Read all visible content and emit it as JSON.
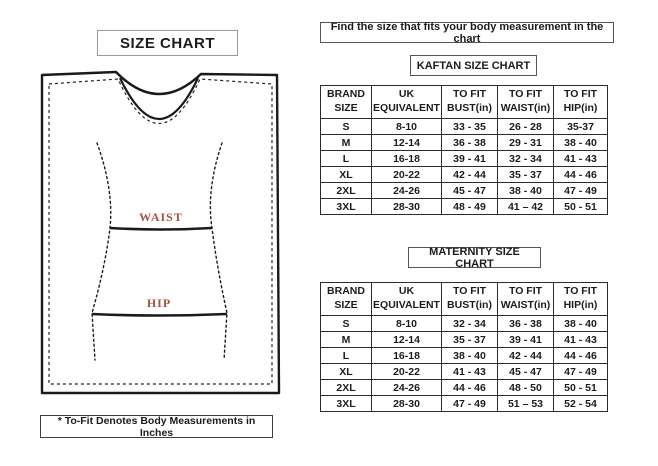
{
  "left": {
    "title": "SIZE CHART",
    "note": "* To-Fit Denotes Body Measurements in Inches",
    "diagram": {
      "waist_label": "WAIST",
      "hip_label": "HIP",
      "label_color": "#a9503f",
      "line_color": "#1a1a1a"
    }
  },
  "right": {
    "instruction": "Find the size that fits your body measurement in the chart",
    "tables": [
      {
        "title": "KAFTAN SIZE CHART",
        "columns": [
          {
            "l1": "BRAND",
            "l2": "SIZE"
          },
          {
            "l1": "UK",
            "l2": "EQUIVALENT"
          },
          {
            "l1": "TO FIT",
            "l2": "BUST(in)"
          },
          {
            "l1": "TO FIT",
            "l2": "WAIST(in)"
          },
          {
            "l1": "TO FIT",
            "l2": "HIP(in)"
          }
        ],
        "rows": [
          [
            "S",
            "8-10",
            "33 - 35",
            "26 - 28",
            "35-37"
          ],
          [
            "M",
            "12-14",
            "36 - 38",
            "29 - 31",
            "38 - 40"
          ],
          [
            "L",
            "16-18",
            "39 - 41",
            "32 - 34",
            "41 - 43"
          ],
          [
            "XL",
            "20-22",
            "42 - 44",
            "35 - 37",
            "44 - 46"
          ],
          [
            "2XL",
            "24-26",
            "45 - 47",
            "38 - 40",
            "47 - 49"
          ],
          [
            "3XL",
            "28-30",
            "48 - 49",
            "41 – 42",
            "50 - 51"
          ]
        ]
      },
      {
        "title": "MATERNITY SIZE CHART",
        "columns": [
          {
            "l1": "BRAND",
            "l2": "SIZE"
          },
          {
            "l1": "UK",
            "l2": "EQUIVALENT"
          },
          {
            "l1": "TO FIT",
            "l2": "BUST(in)"
          },
          {
            "l1": "TO FIT",
            "l2": "WAIST(in)"
          },
          {
            "l1": "TO FIT",
            "l2": "HIP(in)"
          }
        ],
        "rows": [
          [
            "S",
            "8-10",
            "32 - 34",
            "36 - 38",
            "38 - 40"
          ],
          [
            "M",
            "12-14",
            "35 - 37",
            "39 - 41",
            "41 - 43"
          ],
          [
            "L",
            "16-18",
            "38 - 40",
            "42 - 44",
            "44 - 46"
          ],
          [
            "XL",
            "20-22",
            "41 - 43",
            "45 - 47",
            "47 - 49"
          ],
          [
            "2XL",
            "24-26",
            "44 - 46",
            "48 - 50",
            "50 - 51"
          ],
          [
            "3XL",
            "28-30",
            "47 - 49",
            "51 – 53",
            "52 - 54"
          ]
        ]
      }
    ]
  }
}
